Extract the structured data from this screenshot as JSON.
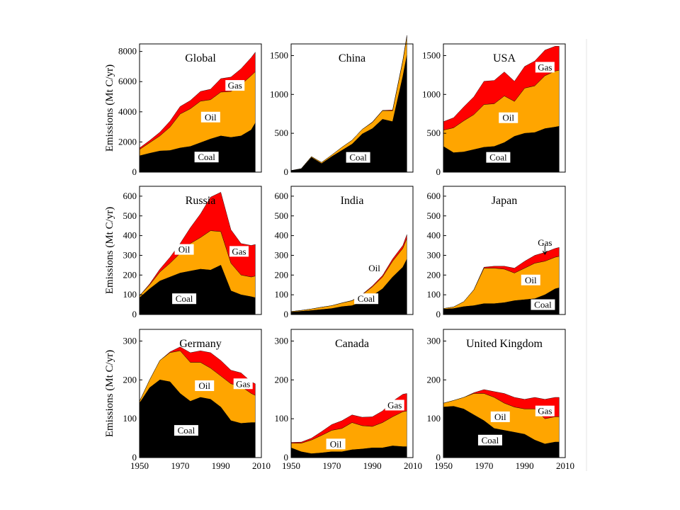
{
  "chart_data": {
    "type": "area",
    "colors": {
      "coal": "#000000",
      "oil": "#FFA500",
      "gas": "#FF0000"
    },
    "x_ticks": [
      1950,
      1970,
      1990,
      2010
    ],
    "years": [
      1950,
      1955,
      1960,
      1965,
      1970,
      1975,
      1980,
      1985,
      1990,
      1995,
      2000,
      2005,
      2007
    ],
    "panels": [
      {
        "title": "Global",
        "ylabel": "Emissions (Mt C/yr)",
        "ylim": [
          0,
          8500
        ],
        "yticks": [
          0,
          2000,
          4000,
          6000,
          8000
        ],
        "coal": [
          1080,
          1250,
          1400,
          1430,
          1600,
          1700,
          1950,
          2200,
          2400,
          2300,
          2400,
          2800,
          3250
        ],
        "oil": [
          420,
          700,
          1000,
          1550,
          2250,
          2500,
          2750,
          2600,
          2900,
          3050,
          3400,
          3600,
          3400
        ],
        "gas": [
          100,
          150,
          250,
          400,
          500,
          550,
          650,
          700,
          900,
          950,
          1050,
          1200,
          1300
        ],
        "labels": [
          {
            "text": "Gas",
            "x": 1997,
            "y": 5750
          },
          {
            "text": "Oil",
            "x": 1985,
            "y": 3650
          },
          {
            "text": "Coal",
            "x": 1983,
            "y": 1000
          }
        ]
      },
      {
        "title": "China",
        "ylabel": "",
        "ylim": [
          0,
          1650
        ],
        "yticks": [
          0,
          500,
          1000,
          1500
        ],
        "coal": [
          20,
          40,
          190,
          110,
          200,
          280,
          360,
          490,
          560,
          680,
          650,
          1230,
          1500
        ],
        "oil": [
          0,
          5,
          10,
          15,
          20,
          40,
          50,
          60,
          80,
          110,
          140,
          200,
          240
        ],
        "gas": [
          0,
          0,
          0,
          0,
          0,
          0,
          0,
          0,
          5,
          5,
          10,
          10,
          20
        ],
        "labels": [
          {
            "text": "Coal",
            "x": 1983,
            "y": 190
          }
        ]
      },
      {
        "title": "USA",
        "ylabel": "",
        "ylim": [
          0,
          1650
        ],
        "yticks": [
          0,
          500,
          1000,
          1500
        ],
        "coal": [
          330,
          250,
          260,
          290,
          320,
          330,
          380,
          460,
          500,
          510,
          560,
          580,
          590
        ],
        "oil": [
          210,
          320,
          400,
          450,
          550,
          550,
          600,
          450,
          580,
          600,
          680,
          720,
          720
        ],
        "gas": [
          110,
          130,
          180,
          230,
          300,
          300,
          310,
          260,
          280,
          320,
          330,
          320,
          310
        ],
        "labels": [
          {
            "text": "Gas",
            "x": 2000,
            "y": 1350
          },
          {
            "text": "Oil",
            "x": 1982,
            "y": 700
          },
          {
            "text": "Coal",
            "x": 1977,
            "y": 190
          }
        ]
      },
      {
        "title": "Russia",
        "ylabel": "Emissions (Mt C/yr)",
        "ylim": [
          0,
          650
        ],
        "yticks": [
          0,
          100,
          200,
          300,
          400,
          500,
          600
        ],
        "coal": [
          85,
          130,
          170,
          190,
          210,
          220,
          230,
          225,
          250,
          120,
          100,
          90,
          85
        ],
        "oil": [
          10,
          20,
          45,
          70,
          100,
          140,
          160,
          200,
          170,
          140,
          100,
          100,
          110
        ],
        "gas": [
          0,
          5,
          15,
          30,
          50,
          80,
          120,
          170,
          200,
          170,
          160,
          160,
          160
        ],
        "labels": [
          {
            "text": "Gas",
            "x": 1999,
            "y": 320
          },
          {
            "text": "Oil",
            "x": 1972,
            "y": 330
          },
          {
            "text": "Coal",
            "x": 1972,
            "y": 80
          }
        ]
      },
      {
        "title": "India",
        "ylabel": "",
        "ylim": [
          0,
          650
        ],
        "yticks": [
          0,
          100,
          200,
          300,
          400,
          500,
          600
        ],
        "coal": [
          12,
          16,
          20,
          25,
          30,
          40,
          45,
          65,
          95,
          130,
          190,
          240,
          280
        ],
        "oil": [
          3,
          5,
          8,
          12,
          15,
          18,
          25,
          35,
          45,
          60,
          80,
          95,
          105
        ],
        "gas": [
          0,
          0,
          0,
          0,
          0,
          1,
          1,
          2,
          5,
          8,
          12,
          15,
          20
        ],
        "labels": [
          {
            "text": "Oil",
            "x": 1991,
            "y": 235
          },
          {
            "text": "Coal",
            "x": 1987,
            "y": 80
          }
        ]
      },
      {
        "title": "Japan",
        "ylabel": "",
        "ylim": [
          0,
          650
        ],
        "yticks": [
          0,
          100,
          200,
          300,
          400,
          500,
          600
        ],
        "coal": [
          27,
          30,
          40,
          45,
          55,
          55,
          60,
          70,
          75,
          80,
          100,
          130,
          135
        ],
        "oil": [
          3,
          8,
          25,
          80,
          180,
          180,
          170,
          140,
          160,
          180,
          170,
          160,
          160
        ],
        "gas": [
          0,
          0,
          0,
          1,
          5,
          10,
          15,
          25,
          35,
          40,
          45,
          45,
          45
        ],
        "labels": [
          {
            "text": "Gas",
            "x": 2000,
            "y": 365
          },
          {
            "text": "Oil",
            "x": 1993,
            "y": 175
          },
          {
            "text": "Coal",
            "x": 1999,
            "y": 50
          }
        ]
      },
      {
        "title": "Germany",
        "ylabel": "Emissions (Mt C/yr)",
        "ylim": [
          0,
          330
        ],
        "yticks": [
          0,
          100,
          200,
          300
        ],
        "coal": [
          140,
          180,
          200,
          195,
          165,
          145,
          155,
          150,
          130,
          95,
          88,
          90,
          90
        ],
        "oil": [
          5,
          20,
          50,
          75,
          110,
          100,
          90,
          80,
          80,
          95,
          95,
          75,
          70
        ],
        "gas": [
          0,
          0,
          0,
          2,
          10,
          25,
          30,
          40,
          40,
          35,
          35,
          30,
          30
        ],
        "labels": [
          {
            "text": "Gas",
            "x": 2001,
            "y": 190
          },
          {
            "text": "Oil",
            "x": 1982,
            "y": 185
          },
          {
            "text": "Coal",
            "x": 1973,
            "y": 70
          }
        ]
      },
      {
        "title": "Canada",
        "ylabel": "",
        "ylim": [
          0,
          330
        ],
        "yticks": [
          0,
          100,
          200,
          300
        ],
        "coal": [
          25,
          15,
          10,
          12,
          15,
          15,
          20,
          22,
          25,
          25,
          30,
          28,
          28
        ],
        "oil": [
          12,
          22,
          35,
          45,
          55,
          60,
          70,
          60,
          55,
          65,
          75,
          90,
          92
        ],
        "gas": [
          2,
          3,
          5,
          10,
          15,
          20,
          20,
          22,
          25,
          30,
          40,
          45,
          45
        ],
        "labels": [
          {
            "text": "Gas",
            "x": 2001,
            "y": 135
          },
          {
            "text": "Oil",
            "x": 1972,
            "y": 35
          }
        ]
      },
      {
        "title": "United Kingdom",
        "ylabel": "",
        "ylim": [
          0,
          330
        ],
        "yticks": [
          0,
          100,
          200,
          300
        ],
        "coal": [
          130,
          132,
          125,
          110,
          95,
          75,
          70,
          65,
          60,
          45,
          35,
          40,
          40
        ],
        "oil": [
          10,
          15,
          30,
          55,
          70,
          80,
          70,
          65,
          65,
          80,
          65,
          65,
          65
        ],
        "gas": [
          0,
          0,
          0,
          2,
          10,
          15,
          25,
          25,
          25,
          30,
          50,
          50,
          50
        ],
        "labels": [
          {
            "text": "Gas",
            "x": 2000,
            "y": 120
          },
          {
            "text": "Oil",
            "x": 1978,
            "y": 105
          },
          {
            "text": "Coal",
            "x": 1973,
            "y": 45
          }
        ]
      }
    ]
  }
}
